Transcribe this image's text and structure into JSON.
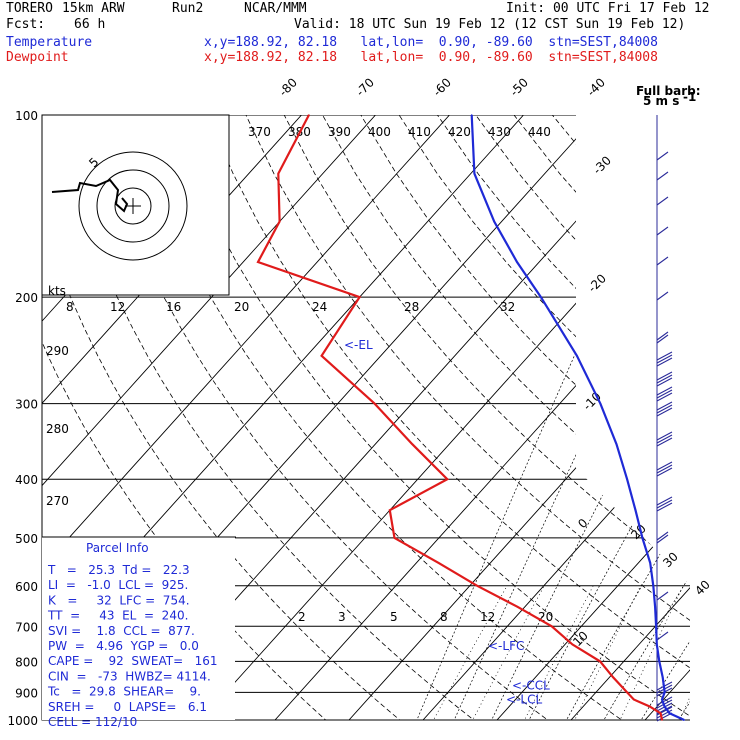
{
  "header": {
    "model": "TORERO",
    "res": "15km ARW",
    "run": "Run2",
    "org": "NCAR/MMM",
    "init": "Init: 00 UTC Fri 17 Feb 12",
    "fcst_label": "Fcst:",
    "fcst_value": "66 h",
    "valid": "Valid: 18 UTC Sun 19 Feb 12 (12 CST Sun 19 Feb 12)",
    "temp_label": "Temperature",
    "dew_label": "Dewpoint",
    "loc_text": "x,y=188.92, 82.18   lat,lon=  0.90, -89.60  stn=SEST,84008"
  },
  "colors": {
    "temperature": "#1f2ad6",
    "dewpoint": "#e01b1b",
    "wind": "#2b2b9a"
  },
  "chart_data": {
    "type": "line",
    "y_axis": "pressure (hPa)",
    "pressure_ticks": [
      100,
      200,
      300,
      400,
      500,
      600,
      700,
      800,
      900,
      1000
    ],
    "skewT_labels": [
      "-80",
      "-70",
      "-60",
      "-50",
      "-40",
      "-30",
      "-20",
      "-10",
      "0",
      "10",
      "20",
      "30",
      "40"
    ],
    "theta_labels": [
      "370",
      "380",
      "390",
      "400",
      "410",
      "420",
      "430",
      "440"
    ],
    "theta_left_labels": [
      "290",
      "280",
      "270"
    ],
    "mixing_ratio_labels_200": [
      "8",
      "12",
      "16",
      "20",
      "24",
      "28",
      "32"
    ],
    "mixing_ratio_labels_700": [
      "2",
      "3",
      "5",
      "8",
      "12",
      "20"
    ],
    "series": [
      {
        "name": "Temperature",
        "pressure": [
          1000,
          975,
          950,
          925,
          900,
          850,
          800,
          750,
          700,
          650,
          600,
          550,
          500,
          450,
          400,
          350,
          300,
          250,
          200,
          175,
          150,
          125,
          100
        ],
        "values": [
          25.3,
          22.5,
          21.0,
          19.8,
          19.3,
          17.2,
          14.8,
          12.4,
          10.1,
          7.6,
          4.8,
          1.6,
          -2.5,
          -6.8,
          -11.7,
          -17.4,
          -24.5,
          -33.5,
          -45.5,
          -53.0,
          -61.0,
          -69.5,
          -77.0
        ]
      },
      {
        "name": "Dewpoint",
        "pressure": [
          1000,
          975,
          950,
          925,
          900,
          850,
          800,
          750,
          700,
          650,
          600,
          550,
          500,
          450,
          400,
          350,
          300,
          250,
          200,
          175,
          150,
          125,
          100
        ],
        "values": [
          22.3,
          21.3,
          19.0,
          16.0,
          14.2,
          10.5,
          6.8,
          1.0,
          -4.0,
          -11.0,
          -19.0,
          -27.0,
          -36.0,
          -40.0,
          -36.0,
          -45.0,
          -55.0,
          -68.0,
          -70.0,
          -88.0,
          -90.0,
          -96.0,
          -99.0
        ]
      }
    ],
    "markers": [
      {
        "label": "<-EL",
        "pressure": 240
      },
      {
        "label": "<-LFC",
        "pressure": 754
      },
      {
        "label": "<-CCL",
        "pressure": 877
      },
      {
        "label": "<-LCL",
        "pressure": 925
      }
    ]
  },
  "hodograph": {
    "units_label": "kts",
    "ring_label": "5"
  },
  "wind_scale": {
    "label": "Full barb:",
    "value": "5 m s",
    "exponent": "-1"
  },
  "parcel": {
    "title": "Parcel Info",
    "rows": [
      "T   =   25.3  Td =   22.3",
      "LI  =   -1.0  LCL =  925.",
      "K   =     32  LFC =  754.",
      "TT  =     43  EL  =  240.",
      "SVI =    1.8  CCL =  877.",
      "PW  =   4.96  YGP =   0.0",
      "CAPE =    92  SWEAT=   161",
      "CIN  =   -73  HWBZ= 4114.",
      "Tc   =  29.8  SHEAR=    9.",
      "SREH =     0  LAPSE=   6.1",
      "CELL = 112/10"
    ]
  }
}
